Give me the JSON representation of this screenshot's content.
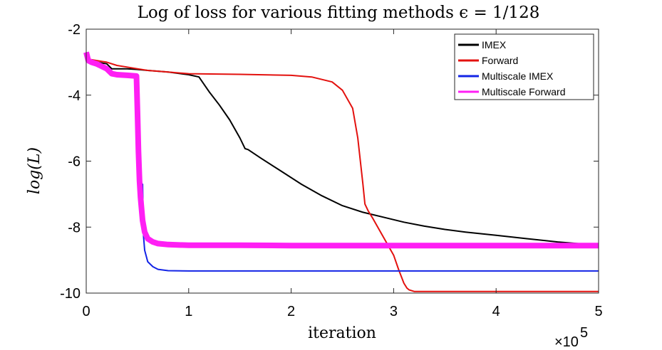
{
  "chart_data": {
    "type": "line",
    "title": "Log of loss for various fitting methods ϵ = 1/128",
    "xlabel": "iteration",
    "ylabel": "log(L)",
    "x_exponent_label": "×10",
    "x_exponent_power": "5",
    "xlim": [
      0,
      5
    ],
    "ylim": [
      -10,
      -2
    ],
    "xticks": [
      0,
      1,
      2,
      3,
      4,
      5
    ],
    "xtick_labels": [
      "0",
      "1",
      "2",
      "3",
      "4",
      "5"
    ],
    "yticks": [
      -10,
      -8,
      -6,
      -4,
      -2
    ],
    "ytick_labels": [
      "-10",
      "-8",
      "-6",
      "-4",
      "-2"
    ],
    "legend_position": "top-right",
    "series": [
      {
        "name": "IMEX",
        "color": "#000000",
        "x": [
          0,
          0.1,
          0.2,
          0.25,
          0.3,
          0.4,
          0.5,
          0.6,
          0.8,
          1.0,
          1.1,
          1.2,
          1.3,
          1.4,
          1.5,
          1.55,
          1.58,
          1.7,
          1.9,
          2.1,
          2.3,
          2.5,
          2.7,
          2.9,
          3.1,
          3.3,
          3.5,
          3.7,
          4.0,
          4.3,
          4.6,
          5.0
        ],
        "y": [
          -2.9,
          -3.0,
          -3.05,
          -3.2,
          -3.2,
          -3.2,
          -3.22,
          -3.25,
          -3.3,
          -3.38,
          -3.45,
          -3.9,
          -4.3,
          -4.75,
          -5.3,
          -5.62,
          -5.65,
          -5.9,
          -6.3,
          -6.7,
          -7.05,
          -7.35,
          -7.55,
          -7.7,
          -7.85,
          -7.97,
          -8.07,
          -8.15,
          -8.25,
          -8.35,
          -8.45,
          -8.55
        ]
      },
      {
        "name": "Forward",
        "color": "#e3110e",
        "x": [
          0,
          0.1,
          0.2,
          0.3,
          0.4,
          0.5,
          0.6,
          0.8,
          1.0,
          1.5,
          2.0,
          2.2,
          2.4,
          2.5,
          2.6,
          2.65,
          2.7,
          2.72,
          2.75,
          2.8,
          2.9,
          3.0,
          3.05,
          3.1,
          3.13,
          3.15,
          3.2,
          3.4,
          3.7,
          4.0,
          4.5,
          5.0
        ],
        "y": [
          -2.9,
          -2.95,
          -3.0,
          -3.1,
          -3.15,
          -3.2,
          -3.25,
          -3.3,
          -3.35,
          -3.37,
          -3.4,
          -3.45,
          -3.6,
          -3.85,
          -4.4,
          -5.3,
          -6.7,
          -7.3,
          -7.5,
          -7.75,
          -8.3,
          -8.85,
          -9.3,
          -9.7,
          -9.85,
          -9.9,
          -9.95,
          -9.95,
          -9.95,
          -9.95,
          -9.95,
          -9.95
        ]
      },
      {
        "name": "Multiscale IMEX",
        "color": "#1324e6",
        "x": [
          0,
          0.02,
          0.05,
          0.1,
          0.2,
          0.25,
          0.3,
          0.4,
          0.5,
          0.51,
          0.52,
          0.53,
          0.54,
          0.55,
          0.56,
          0.57,
          0.6,
          0.65,
          0.7,
          0.8,
          1.0,
          1.5,
          2.0,
          3.0,
          4.0,
          5.0
        ],
        "y": [
          -2.7,
          -2.95,
          -3.0,
          -3.05,
          -3.2,
          -3.35,
          -3.38,
          -3.4,
          -3.42,
          -5.5,
          -5.9,
          -6.6,
          -6.9,
          -6.7,
          -8.3,
          -8.7,
          -9.05,
          -9.2,
          -9.28,
          -9.32,
          -9.33,
          -9.33,
          -9.33,
          -9.33,
          -9.33,
          -9.33
        ]
      },
      {
        "name": "Multiscale Forward",
        "color": "#ff1ff4",
        "x": [
          0,
          0.02,
          0.05,
          0.1,
          0.2,
          0.25,
          0.3,
          0.4,
          0.49,
          0.5,
          0.51,
          0.52,
          0.53,
          0.55,
          0.57,
          0.6,
          0.65,
          0.7,
          0.8,
          1.0,
          1.5,
          2.0,
          3.0,
          4.0,
          5.0
        ],
        "y": [
          -2.7,
          -2.95,
          -3.0,
          -3.05,
          -3.2,
          -3.35,
          -3.38,
          -3.4,
          -3.42,
          -4.5,
          -5.7,
          -6.6,
          -7.1,
          -7.8,
          -8.15,
          -8.35,
          -8.45,
          -8.5,
          -8.53,
          -8.55,
          -8.55,
          -8.56,
          -8.56,
          -8.56,
          -8.56
        ]
      }
    ]
  }
}
